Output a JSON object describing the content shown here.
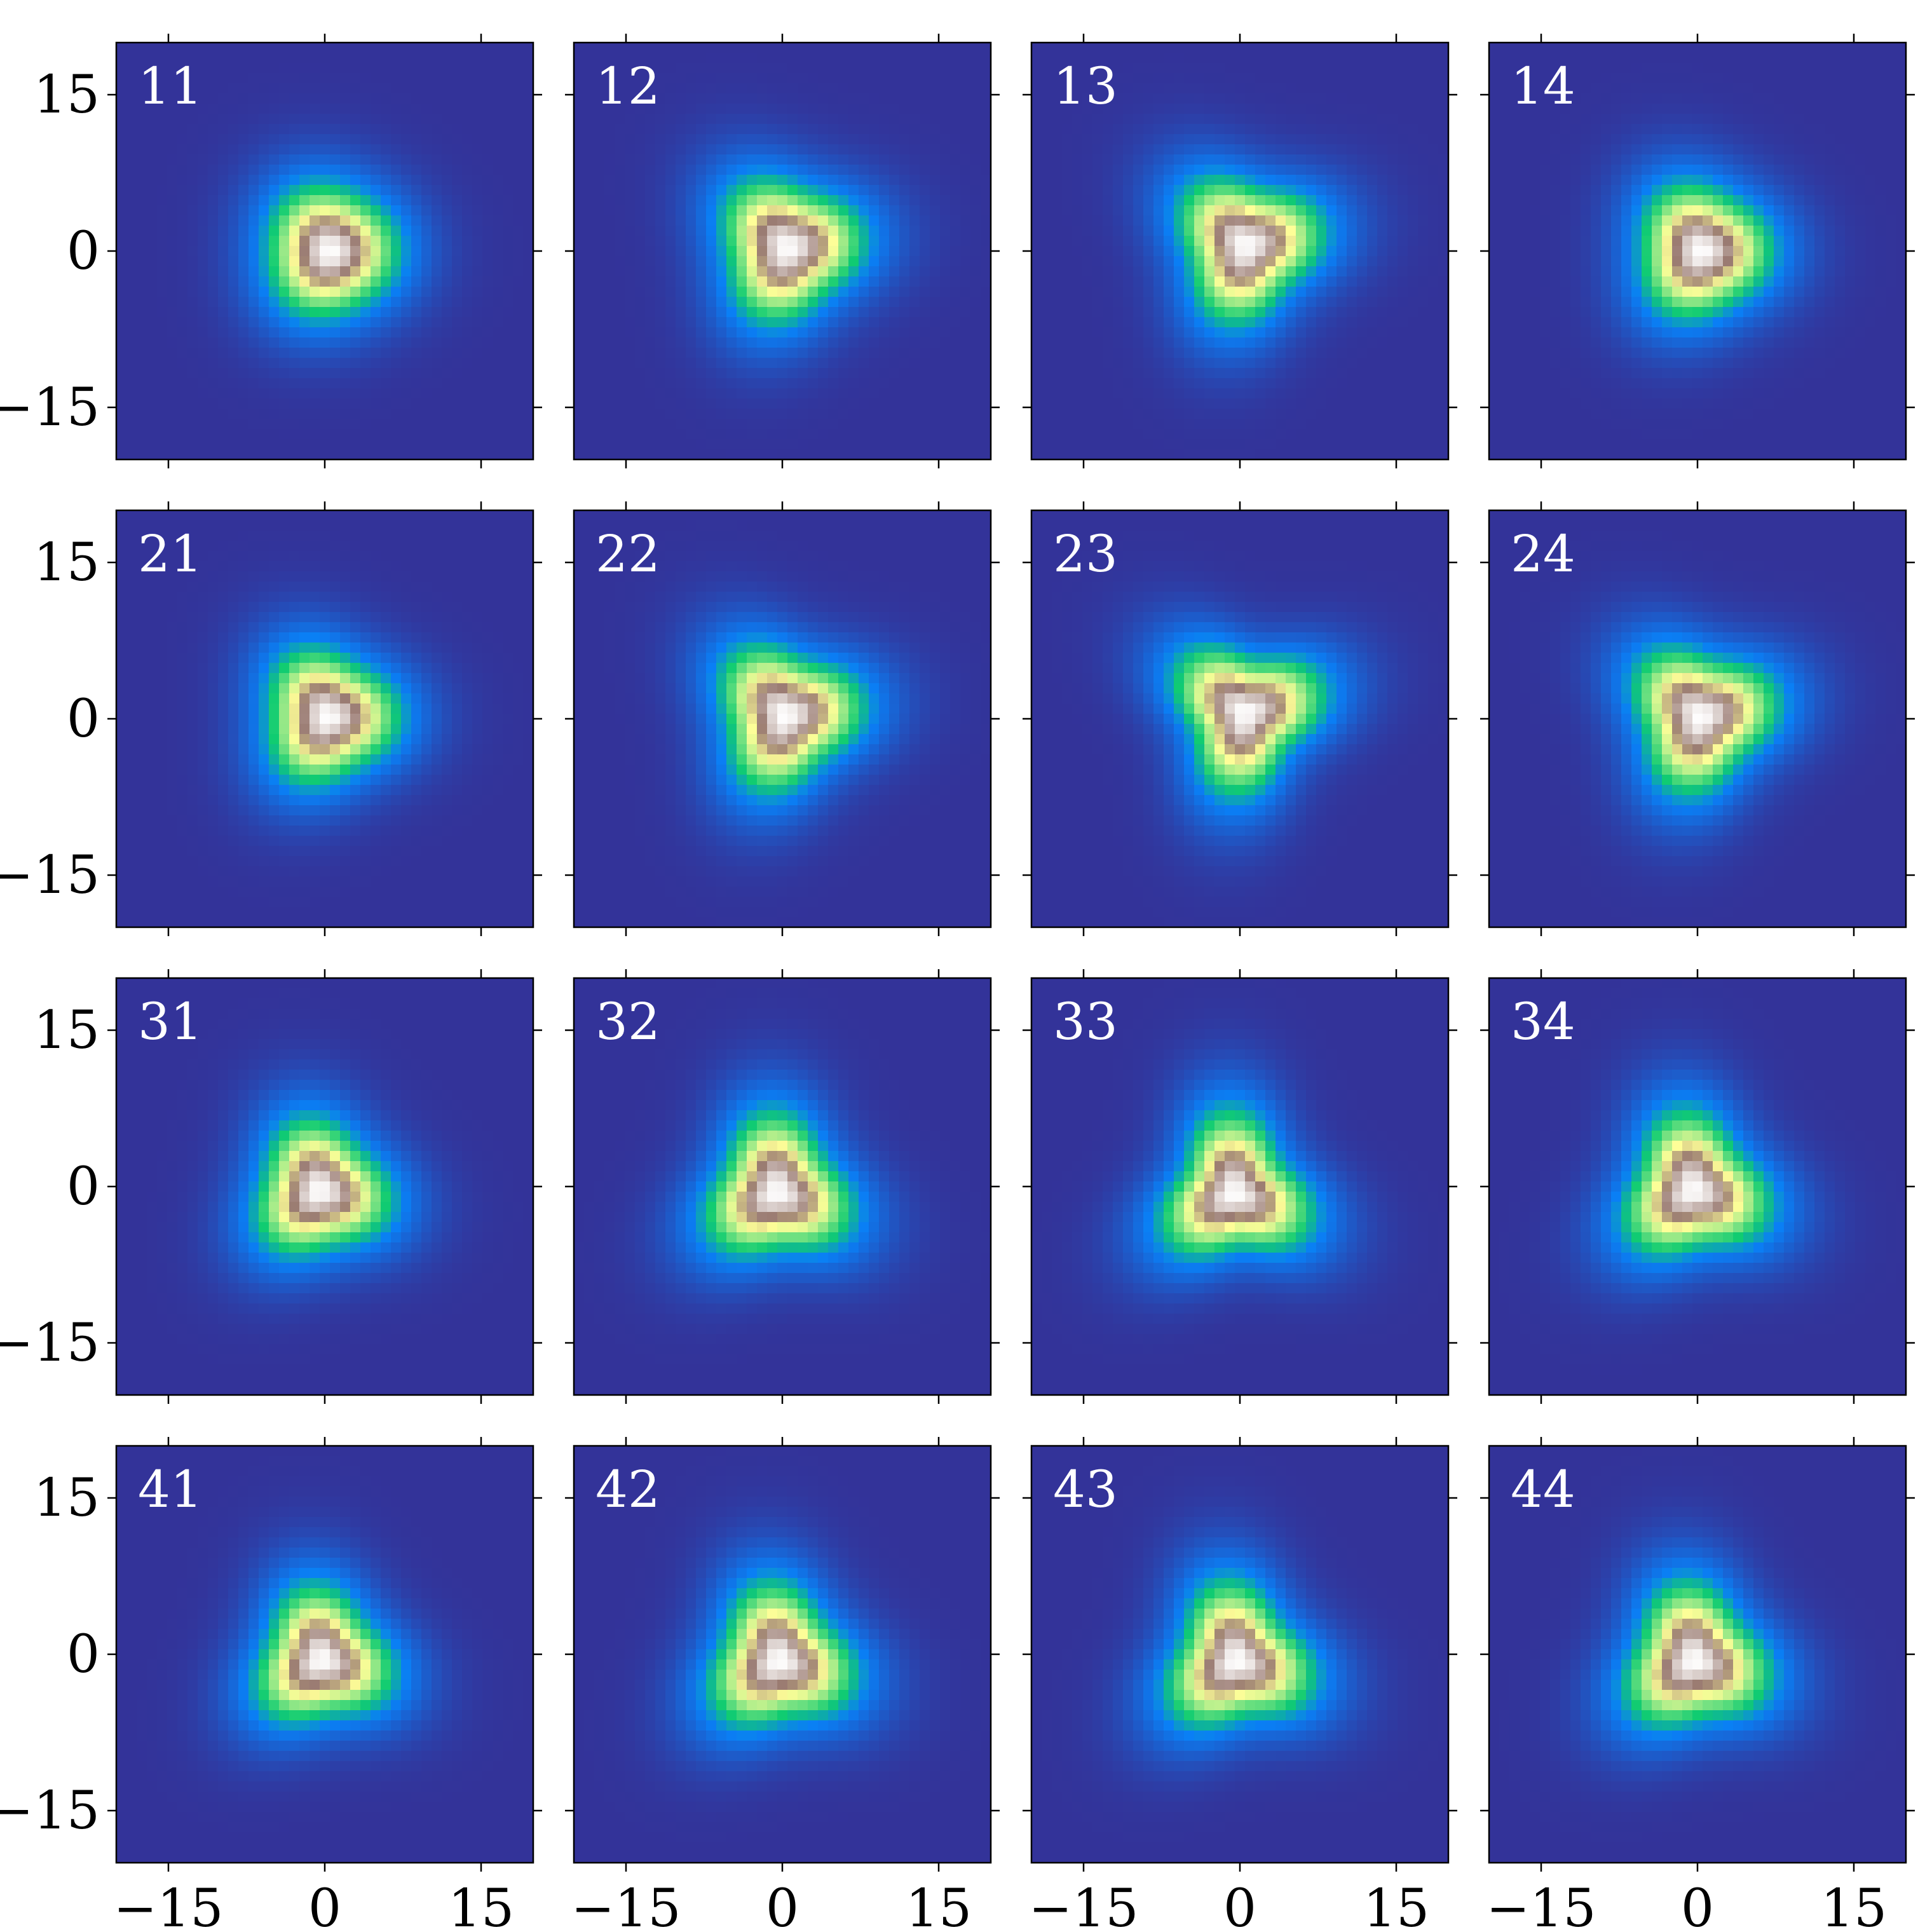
{
  "chart_data": {
    "type": "heatmap",
    "layout": {
      "rows": 4,
      "cols": 4
    },
    "x_ticks": [
      -15,
      0,
      15
    ],
    "y_ticks": [
      15,
      0,
      -15
    ],
    "xlim": [
      -20,
      20
    ],
    "ylim": [
      -20,
      20
    ],
    "colormap": {
      "name": "terrain-like",
      "stops": [
        "#333399",
        "#0a7ff5",
        "#10cc71",
        "#fefe98",
        "#9a7b72",
        "#ffffff"
      ]
    },
    "panels": [
      {
        "label": "11",
        "peak": [
          0.5,
          0.0
        ],
        "triangularity": 0.05,
        "orientation_deg": 0,
        "spread": 1.0
      },
      {
        "label": "21",
        "peak": [
          0.3,
          0.2
        ],
        "triangularity": 0.1,
        "orientation_deg": 0,
        "spread": 1.0
      },
      {
        "label": "31",
        "peak": [
          -0.5,
          -0.4
        ],
        "triangularity": 0.12,
        "orientation_deg": -15,
        "spread": 1.0
      },
      {
        "label": "41",
        "peak": [
          -0.3,
          -0.5
        ],
        "triangularity": 0.14,
        "orientation_deg": -20,
        "spread": 1.0
      },
      {
        "label": "12",
        "peak": [
          0.5,
          0.3
        ],
        "triangularity": 0.12,
        "orientation_deg": 10,
        "spread": 1.05
      },
      {
        "label": "22",
        "peak": [
          0.3,
          0.3
        ],
        "triangularity": 0.15,
        "orientation_deg": 10,
        "spread": 1.05
      },
      {
        "label": "32",
        "peak": [
          -0.5,
          -0.5
        ],
        "triangularity": 0.16,
        "orientation_deg": -25,
        "spread": 1.05
      },
      {
        "label": "42",
        "peak": [
          -0.3,
          -0.6
        ],
        "triangularity": 0.15,
        "orientation_deg": -20,
        "spread": 1.05
      },
      {
        "label": "13",
        "peak": [
          0.6,
          0.5
        ],
        "triangularity": 0.15,
        "orientation_deg": 15,
        "spread": 1.05
      },
      {
        "label": "23",
        "peak": [
          0.5,
          0.5
        ],
        "triangularity": 0.2,
        "orientation_deg": 20,
        "spread": 1.05
      },
      {
        "label": "33",
        "peak": [
          -0.5,
          -0.6
        ],
        "triangularity": 0.2,
        "orientation_deg": -25,
        "spread": 1.05
      },
      {
        "label": "43",
        "peak": [
          -0.3,
          -0.6
        ],
        "triangularity": 0.17,
        "orientation_deg": -20,
        "spread": 1.05
      },
      {
        "label": "14",
        "peak": [
          0.4,
          0.0
        ],
        "triangularity": 0.08,
        "orientation_deg": 0,
        "spread": 1.0
      },
      {
        "label": "24",
        "peak": [
          0.3,
          0.2
        ],
        "triangularity": 0.15,
        "orientation_deg": 15,
        "spread": 1.05
      },
      {
        "label": "34",
        "peak": [
          -0.4,
          -0.3
        ],
        "triangularity": 0.16,
        "orientation_deg": -20,
        "spread": 1.05
      },
      {
        "label": "44",
        "peak": [
          -0.3,
          -0.6
        ],
        "triangularity": 0.15,
        "orientation_deg": -20,
        "spread": 1.05
      }
    ]
  }
}
